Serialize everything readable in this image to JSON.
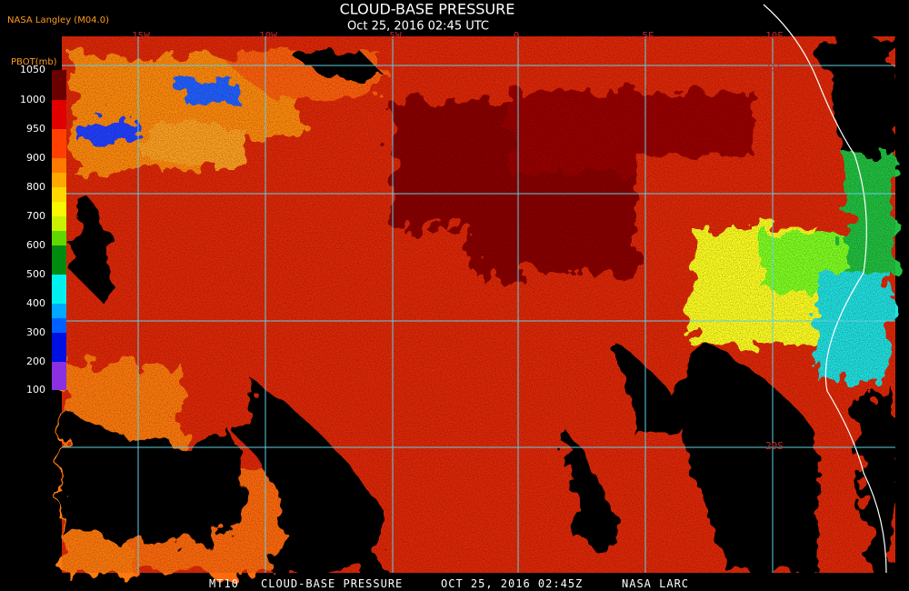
{
  "header": {
    "title": "CLOUD-BASE PRESSURE",
    "subtitle": "Oct 25, 2016 02:45 UTC",
    "source": "NASA Langley (M04.0)"
  },
  "legend": {
    "title": "PBOT(mb)",
    "labels": [
      1050,
      1000,
      950,
      900,
      800,
      700,
      600,
      500,
      400,
      300,
      200,
      100
    ]
  },
  "map": {
    "lon_labels": [
      "15W",
      "10W",
      "5W",
      "0",
      "5E",
      "10E"
    ],
    "lat_labels": [
      "15S",
      "20S"
    ]
  },
  "footer": [
    "MT10",
    "CLOUD-BASE PRESSURE",
    "OCT 25, 2016 02:45Z",
    "NASA LARC"
  ]
}
